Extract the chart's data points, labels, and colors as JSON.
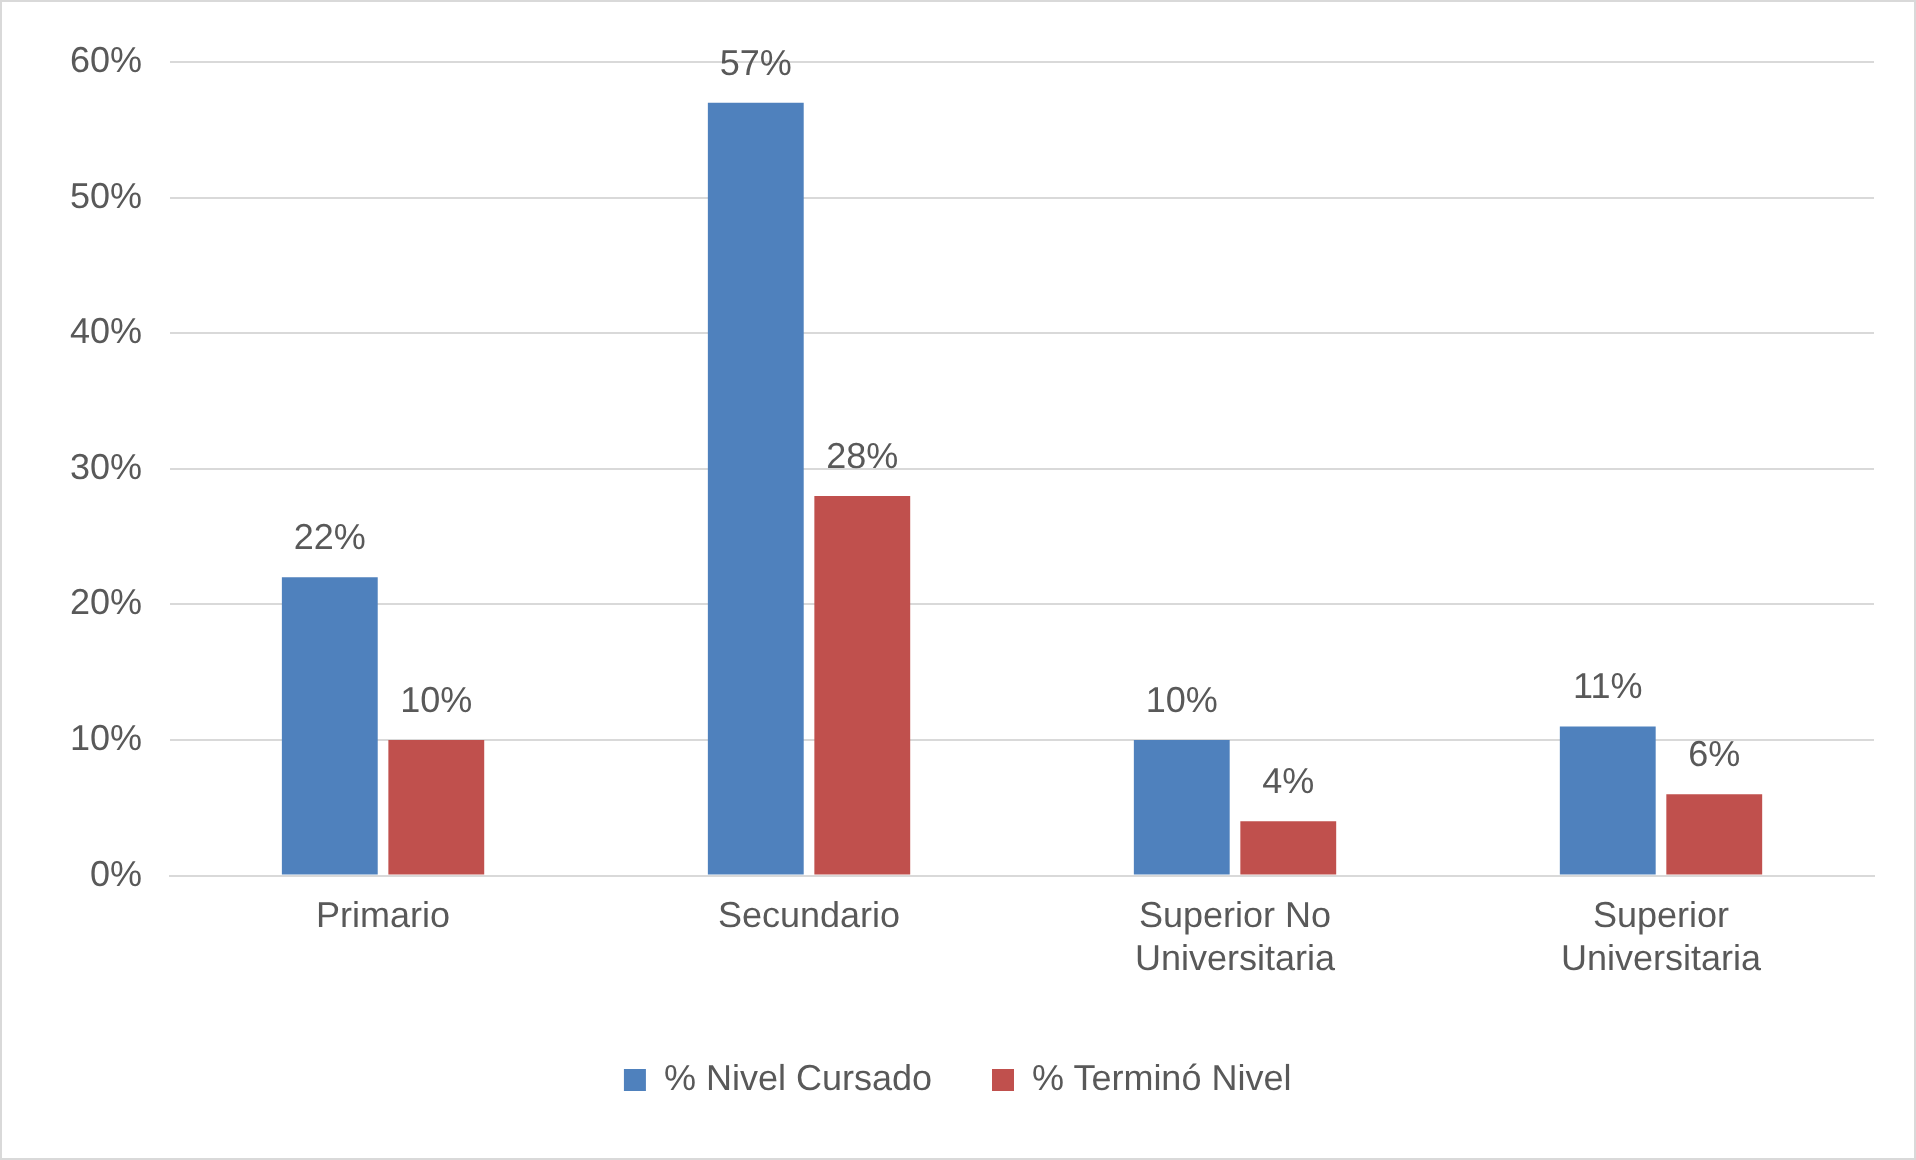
{
  "chart_data": {
    "type": "bar",
    "categories": [
      "Primario",
      "Secundario",
      "Superior No Universitaria",
      "Superior Universitaria"
    ],
    "series": [
      {
        "name": "% Nivel Cursado",
        "color": "#4f81bd",
        "values": [
          22,
          57,
          10,
          11
        ],
        "value_labels": [
          "22%",
          "57%",
          "10%",
          "11%"
        ]
      },
      {
        "name": "% Terminó Nivel",
        "color": "#c0504d",
        "values": [
          10,
          28,
          4,
          6
        ],
        "value_labels": [
          "10%",
          "28%",
          "4%",
          "6%"
        ]
      }
    ],
    "ylim": [
      0,
      60
    ],
    "yticks": [
      {
        "value": 0,
        "label": "0%"
      },
      {
        "value": 10,
        "label": "10%"
      },
      {
        "value": 20,
        "label": "20%"
      },
      {
        "value": 30,
        "label": "30%"
      },
      {
        "value": 40,
        "label": "40%"
      },
      {
        "value": 50,
        "label": "50%"
      },
      {
        "value": 60,
        "label": "60%"
      }
    ],
    "grid": "y",
    "legend": "bottom"
  }
}
